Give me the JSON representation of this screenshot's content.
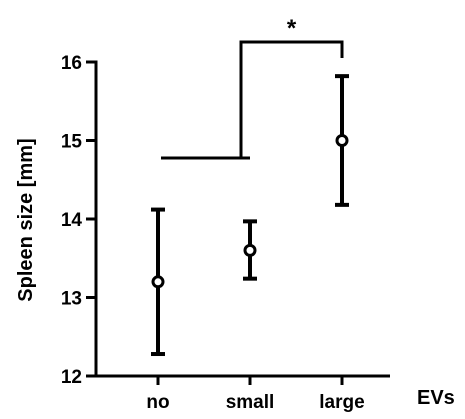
{
  "chart_data": {
    "type": "scatter",
    "style": "mean with error bars",
    "title": "",
    "xlabel": "EVs",
    "ylabel": "Spleen size [mm]",
    "ylim": [
      12,
      16
    ],
    "yticks": [
      12,
      13,
      14,
      15,
      16
    ],
    "grid": false,
    "categories": [
      "no",
      "small",
      "large"
    ],
    "series": [
      {
        "values": [
          13.2,
          13.6,
          15.0
        ],
        "error_low": [
          12.28,
          13.24,
          14.18
        ],
        "error_high": [
          14.12,
          13.97,
          15.82
        ]
      }
    ],
    "annotations": [
      {
        "type": "significance-bracket",
        "from": [
          "no",
          "small"
        ],
        "to": "large",
        "label": "*"
      }
    ]
  },
  "colors": {
    "marker": "#000000",
    "axis": "#000000"
  }
}
